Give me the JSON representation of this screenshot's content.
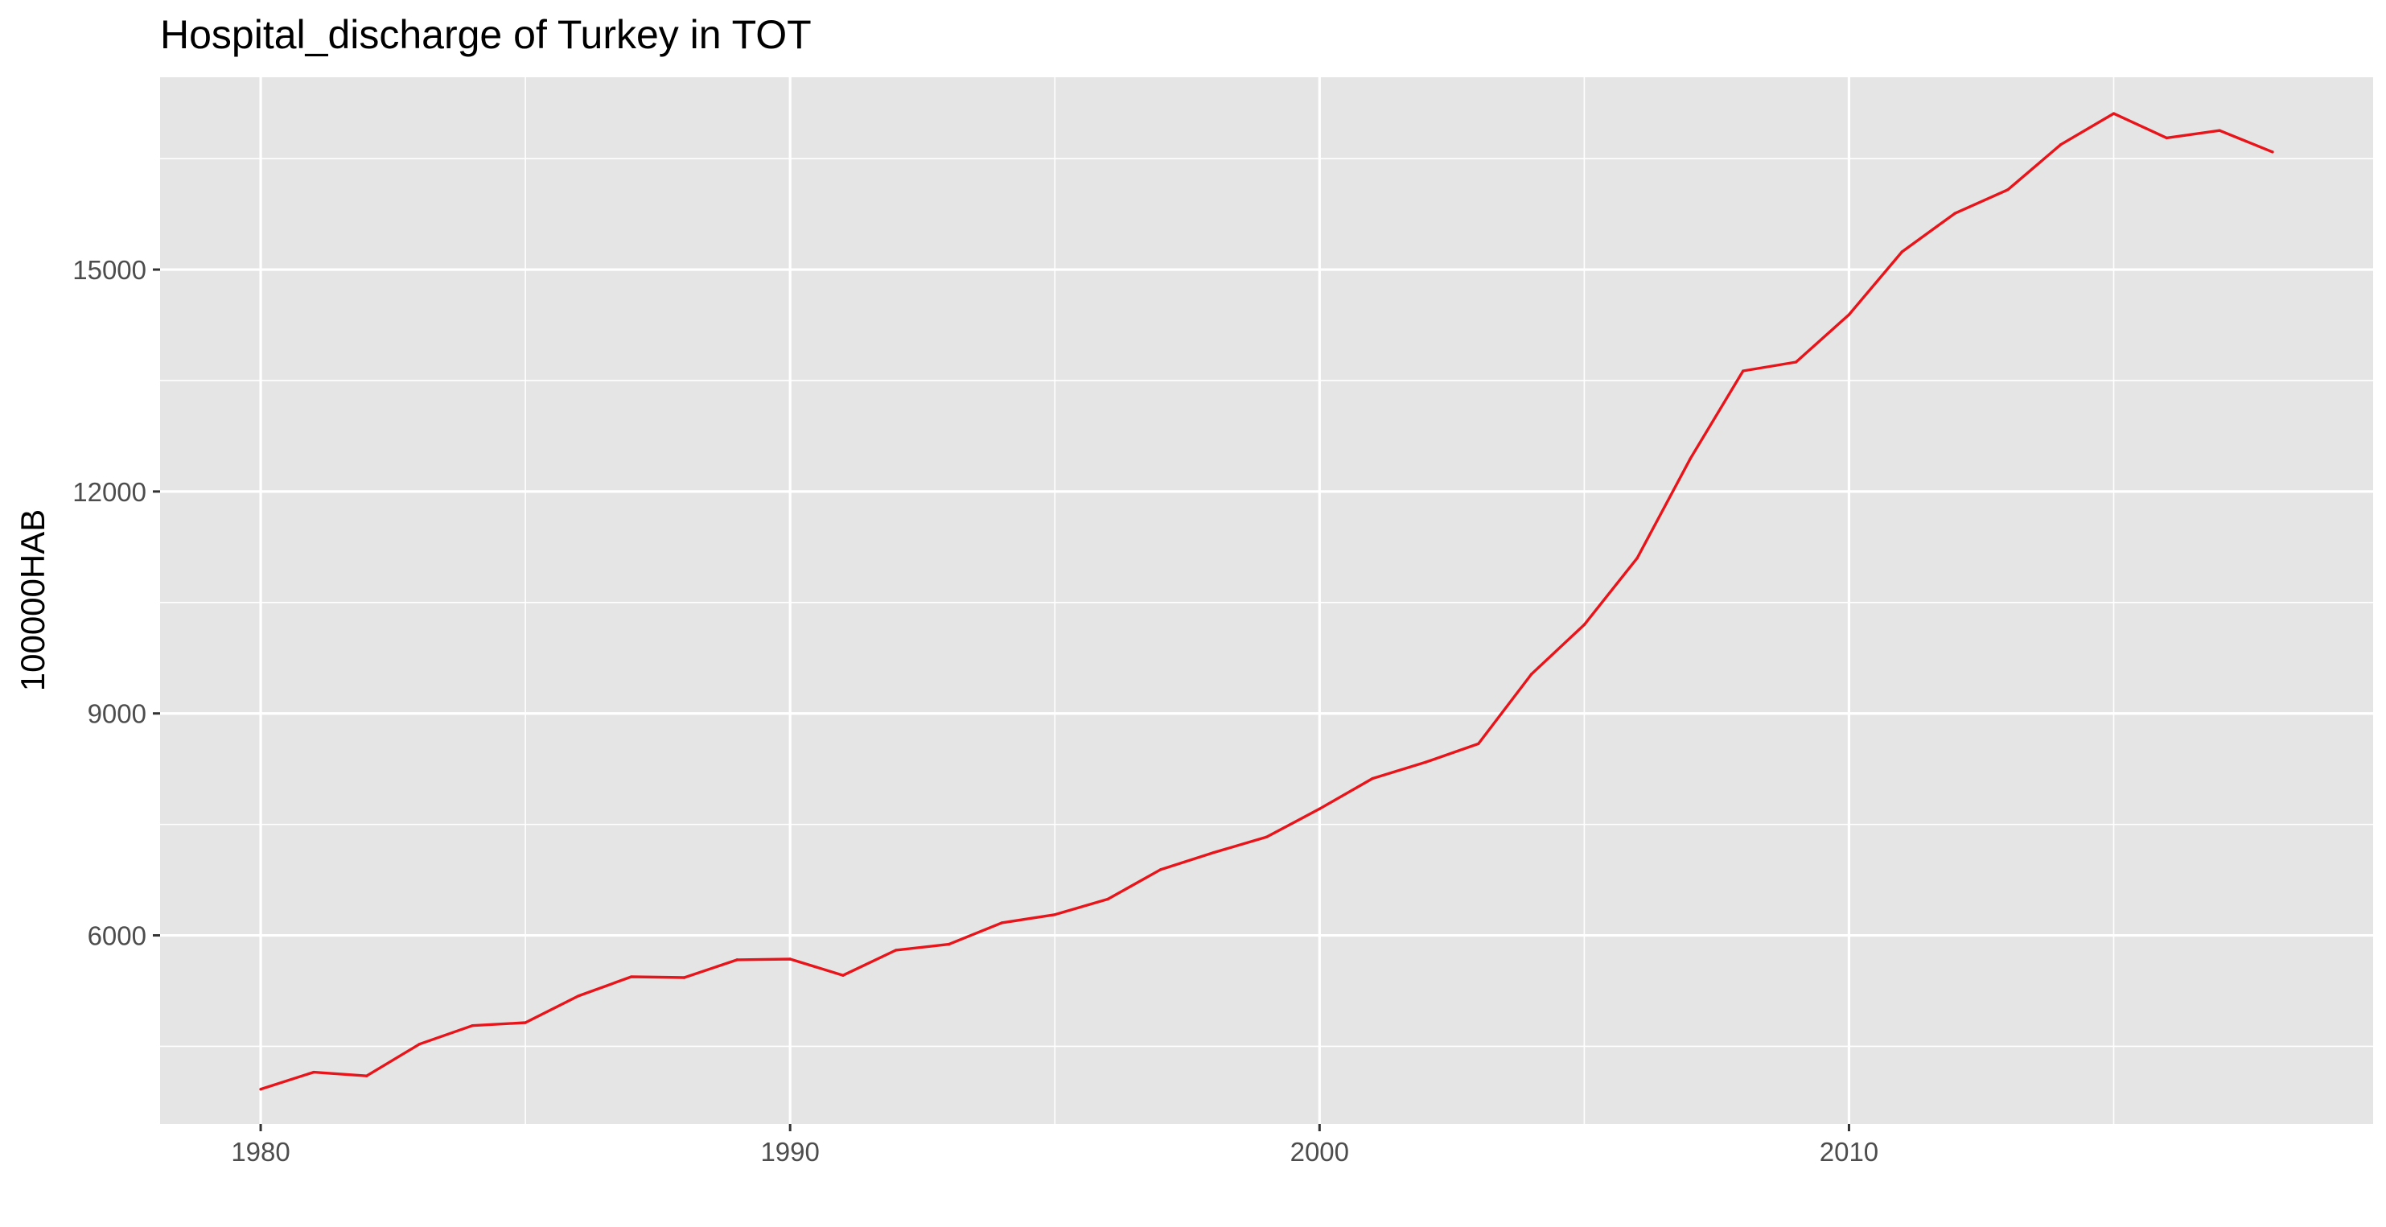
{
  "chart_data": {
    "type": "line",
    "title": "Hospital_discharge of Turkey in TOT",
    "xlabel": "",
    "ylabel": "100000HAB",
    "xlim": [
      1978.1,
      2019.9
    ],
    "ylim": [
      3450,
      17600
    ],
    "x_ticks": [
      1980,
      1990,
      2000,
      2010
    ],
    "y_ticks": [
      6000,
      9000,
      12000,
      15000
    ],
    "grid": true,
    "legend": "none",
    "colors": {
      "panel": "#e5e5e5",
      "grid": "#ffffff",
      "line": "#e8141a"
    },
    "series": [
      {
        "x": [
          1980,
          1981,
          1982,
          1983,
          1984,
          1985,
          1986,
          1987,
          1988,
          1989,
          1990,
          1991,
          1992,
          1993,
          1994,
          1995,
          1996,
          1997,
          1998,
          1999,
          2000,
          2001,
          2002,
          2003,
          2004,
          2005,
          2006,
          2007,
          2008,
          2009,
          2010,
          2011,
          2012,
          2013,
          2014,
          2015,
          2016,
          2017,
          2018
        ],
        "values": [
          3920,
          4150,
          4100,
          4530,
          4780,
          4820,
          5180,
          5440,
          5430,
          5670,
          5680,
          5460,
          5800,
          5880,
          6170,
          6280,
          6490,
          6890,
          7120,
          7330,
          7710,
          8120,
          8340,
          8590,
          9530,
          10200,
          11100,
          12440,
          13630,
          13750,
          14390,
          15240,
          15760,
          16080,
          16690,
          17110,
          16780,
          16880,
          16590
        ]
      }
    ]
  }
}
